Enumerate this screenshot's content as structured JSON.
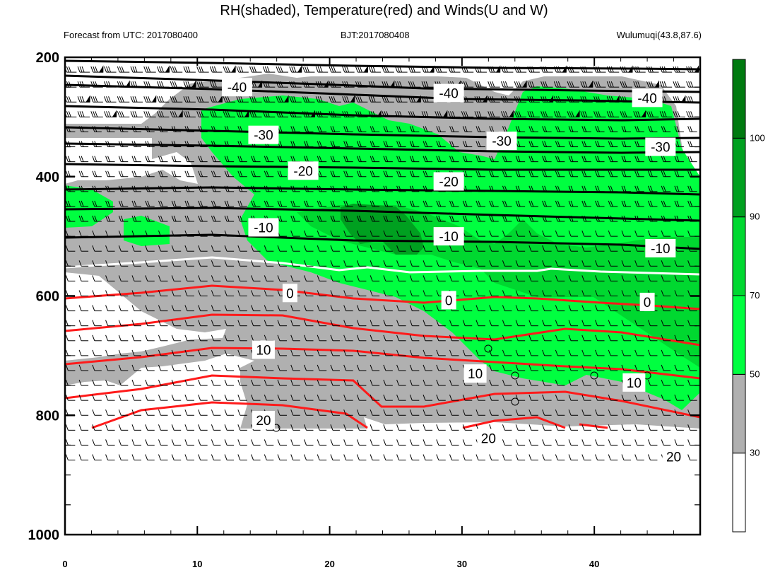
{
  "chart_data": {
    "type": "contour",
    "title": "RH(shaded), Temperature(red) and Winds(U and W)",
    "subtitle_left": "Forecast from UTC: 2017080400",
    "subtitle_center": "BJT:2017080408",
    "subtitle_right": "Wulumuqi(43.8,87.6)",
    "xlim": [
      0,
      48
    ],
    "ylim": [
      1000,
      200
    ],
    "x_ticks": [
      0,
      10,
      20,
      30,
      40
    ],
    "y_ticks": [
      200,
      400,
      600,
      800,
      1000
    ],
    "colorbar": {
      "levels": [
        30,
        50,
        70,
        90,
        100
      ],
      "colors": [
        "#ffffff",
        "#b0b0b0",
        "#00ff40",
        "#00d830",
        "#00a020",
        "#007a10"
      ]
    },
    "temperature_contour_labels": [
      {
        "text": "-40",
        "x": 13,
        "p": 250
      },
      {
        "text": "-40",
        "x": 29,
        "p": 260
      },
      {
        "text": "-40",
        "x": 44,
        "p": 268
      },
      {
        "text": "-30",
        "x": 15,
        "p": 330
      },
      {
        "text": "-30",
        "x": 33,
        "p": 340
      },
      {
        "text": "-30",
        "x": 45,
        "p": 350
      },
      {
        "text": "-20",
        "x": 18,
        "p": 390
      },
      {
        "text": "-20",
        "x": 29,
        "p": 408
      },
      {
        "text": "-10",
        "x": 15,
        "p": 485
      },
      {
        "text": "-10",
        "x": 29,
        "p": 500
      },
      {
        "text": "-10",
        "x": 45,
        "p": 520
      },
      {
        "text": "0",
        "x": 17,
        "p": 595
      },
      {
        "text": "0",
        "x": 29,
        "p": 607
      },
      {
        "text": "0",
        "x": 44,
        "p": 610
      },
      {
        "text": "10",
        "x": 15,
        "p": 690
      },
      {
        "text": "10",
        "x": 31,
        "p": 730
      },
      {
        "text": "10",
        "x": 43,
        "p": 745
      },
      {
        "text": "20",
        "x": 15,
        "p": 808
      },
      {
        "text": "20",
        "x": 32,
        "p": 838
      },
      {
        "text": "20",
        "x": 46,
        "p": 869
      }
    ]
  }
}
